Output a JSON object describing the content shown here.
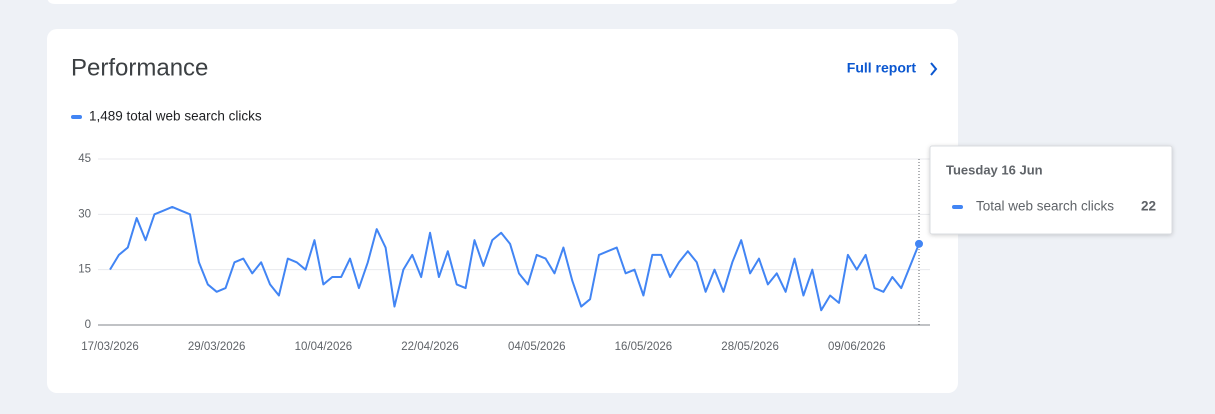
{
  "header": {
    "title": "Performance",
    "link": "Full report"
  },
  "chart_data": {
    "type": "line",
    "summary": "1,489 total web search clicks",
    "x": [
      "17/03/2026",
      "18/03/2026",
      "19/03/2026",
      "20/03/2026",
      "21/03/2026",
      "22/03/2026",
      "23/03/2026",
      "24/03/2026",
      "25/03/2026",
      "26/03/2026",
      "27/03/2026",
      "28/03/2026",
      "29/03/2026",
      "30/03/2026",
      "31/03/2026",
      "01/04/2026",
      "02/04/2026",
      "03/04/2026",
      "04/04/2026",
      "05/04/2026",
      "06/04/2026",
      "07/04/2026",
      "08/04/2026",
      "09/04/2026",
      "10/04/2026",
      "11/04/2026",
      "12/04/2026",
      "13/04/2026",
      "14/04/2026",
      "15/04/2026",
      "16/04/2026",
      "17/04/2026",
      "18/04/2026",
      "19/04/2026",
      "20/04/2026",
      "21/04/2026",
      "22/04/2026",
      "23/04/2026",
      "24/04/2026",
      "25/04/2026",
      "26/04/2026",
      "27/04/2026",
      "28/04/2026",
      "29/04/2026",
      "30/04/2026",
      "01/05/2026",
      "02/05/2026",
      "03/05/2026",
      "04/05/2026",
      "05/05/2026",
      "06/05/2026",
      "07/05/2026",
      "08/05/2026",
      "09/05/2026",
      "10/05/2026",
      "11/05/2026",
      "12/05/2026",
      "13/05/2026",
      "14/05/2026",
      "15/05/2026",
      "16/05/2026",
      "17/05/2026",
      "18/05/2026",
      "19/05/2026",
      "20/05/2026",
      "21/05/2026",
      "22/05/2026",
      "23/05/2026",
      "24/05/2026",
      "25/05/2026",
      "26/05/2026",
      "27/05/2026",
      "28/05/2026",
      "29/05/2026",
      "30/05/2026",
      "31/05/2026",
      "01/06/2026",
      "02/06/2026",
      "03/06/2026",
      "04/06/2026",
      "05/06/2026",
      "06/06/2026",
      "07/06/2026",
      "08/06/2026",
      "09/06/2026",
      "10/06/2026",
      "11/06/2026",
      "12/06/2026",
      "13/06/2026",
      "14/06/2026",
      "15/06/2026",
      "16/06/2026"
    ],
    "xticks": [
      "17/03/2026",
      "29/03/2026",
      "10/04/2026",
      "22/04/2026",
      "04/05/2026",
      "16/05/2026",
      "28/05/2026",
      "09/06/2026"
    ],
    "series": [
      {
        "name": "Total web search clicks",
        "color": "#4285f4",
        "values": [
          15,
          19,
          21,
          29,
          23,
          30,
          31,
          32,
          31,
          30,
          17,
          11,
          9,
          10,
          17,
          18,
          14,
          17,
          11,
          8,
          18,
          17,
          15,
          23,
          11,
          13,
          13,
          18,
          10,
          17,
          26,
          21,
          5,
          15,
          19,
          13,
          25,
          13,
          20,
          11,
          10,
          23,
          16,
          23,
          25,
          22,
          14,
          11,
          19,
          18,
          14,
          21,
          12,
          5,
          7,
          19,
          20,
          21,
          14,
          15,
          8,
          19,
          19,
          13,
          17,
          20,
          17,
          9,
          15,
          9,
          17,
          23,
          14,
          18,
          11,
          14,
          9,
          18,
          8,
          15,
          4,
          8,
          6,
          19,
          15,
          19,
          10,
          9,
          13,
          10,
          16,
          22
        ]
      }
    ],
    "ylim": [
      0,
      45
    ],
    "yticks": [
      0,
      15,
      30,
      45
    ],
    "grid": true
  },
  "tooltip": {
    "date": "Tuesday 16 Jun"
  }
}
